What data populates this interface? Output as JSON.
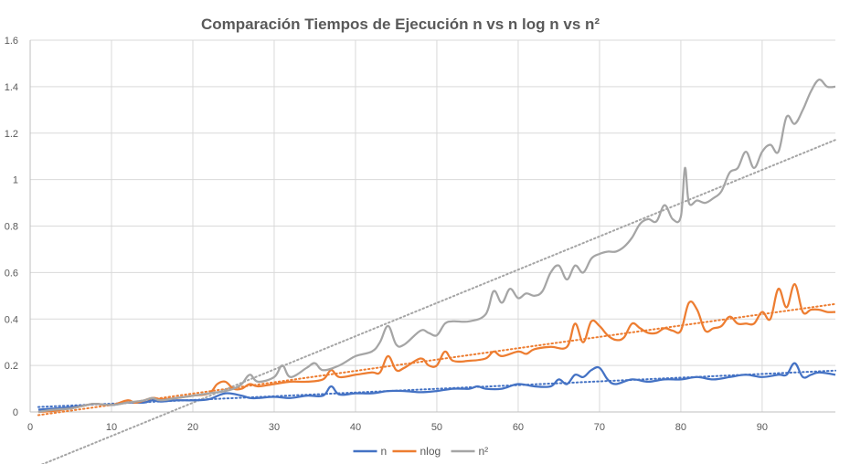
{
  "chart_data": {
    "type": "line",
    "title": "Comparación Tiempos de Ejecución n vs n log n vs n²",
    "xlabel": "",
    "ylabel": "",
    "xlim": [
      0,
      99
    ],
    "ylim": [
      0,
      1.6
    ],
    "x_ticks": [
      0,
      10,
      20,
      30,
      40,
      50,
      60,
      70,
      80,
      90
    ],
    "y_ticks": [
      0,
      0.2,
      0.4,
      0.6,
      0.8,
      1,
      1.2,
      1.4,
      1.6
    ],
    "y_tick_labels": [
      "0",
      "0.2",
      "0.4",
      "0.6",
      "0.8",
      "1",
      "1.2",
      "1.4",
      "1.6"
    ],
    "grid": true,
    "legend_position": "bottom",
    "trendlines": "linear, dotted, one per series",
    "series": [
      {
        "name": "n",
        "color": "#4472c4",
        "points": [
          [
            1,
            0.01
          ],
          [
            3,
            0.015
          ],
          [
            5,
            0.02
          ],
          [
            7,
            0.03
          ],
          [
            8,
            0.035
          ],
          [
            10,
            0.03
          ],
          [
            12,
            0.04
          ],
          [
            14,
            0.04
          ],
          [
            15,
            0.05
          ],
          [
            16,
            0.045
          ],
          [
            18,
            0.05
          ],
          [
            20,
            0.05
          ],
          [
            22,
            0.055
          ],
          [
            24,
            0.08
          ],
          [
            26,
            0.07
          ],
          [
            27,
            0.06
          ],
          [
            28,
            0.06
          ],
          [
            30,
            0.065
          ],
          [
            32,
            0.06
          ],
          [
            34,
            0.07
          ],
          [
            36,
            0.07
          ],
          [
            37,
            0.11
          ],
          [
            38,
            0.075
          ],
          [
            40,
            0.08
          ],
          [
            42,
            0.08
          ],
          [
            44,
            0.09
          ],
          [
            46,
            0.09
          ],
          [
            48,
            0.085
          ],
          [
            50,
            0.09
          ],
          [
            52,
            0.1
          ],
          [
            54,
            0.1
          ],
          [
            55,
            0.11
          ],
          [
            56,
            0.1
          ],
          [
            58,
            0.1
          ],
          [
            60,
            0.12
          ],
          [
            62,
            0.11
          ],
          [
            64,
            0.11
          ],
          [
            65,
            0.14
          ],
          [
            66,
            0.12
          ],
          [
            67,
            0.16
          ],
          [
            68,
            0.15
          ],
          [
            69,
            0.18
          ],
          [
            70,
            0.19
          ],
          [
            71,
            0.14
          ],
          [
            72,
            0.12
          ],
          [
            74,
            0.14
          ],
          [
            76,
            0.13
          ],
          [
            78,
            0.14
          ],
          [
            80,
            0.14
          ],
          [
            82,
            0.15
          ],
          [
            84,
            0.14
          ],
          [
            86,
            0.15
          ],
          [
            88,
            0.16
          ],
          [
            90,
            0.15
          ],
          [
            92,
            0.16
          ],
          [
            93,
            0.16
          ],
          [
            94,
            0.21
          ],
          [
            95,
            0.15
          ],
          [
            96,
            0.16
          ],
          [
            97,
            0.17
          ],
          [
            99,
            0.16
          ]
        ]
      },
      {
        "name": "nlog",
        "color": "#ed7d31",
        "points": [
          [
            1,
            0.0
          ],
          [
            3,
            0.005
          ],
          [
            5,
            0.015
          ],
          [
            7,
            0.03
          ],
          [
            8,
            0.035
          ],
          [
            10,
            0.03
          ],
          [
            12,
            0.05
          ],
          [
            13,
            0.04
          ],
          [
            15,
            0.06
          ],
          [
            16,
            0.055
          ],
          [
            18,
            0.06
          ],
          [
            20,
            0.07
          ],
          [
            22,
            0.08
          ],
          [
            23,
            0.12
          ],
          [
            24,
            0.13
          ],
          [
            25,
            0.1
          ],
          [
            26,
            0.1
          ],
          [
            27,
            0.12
          ],
          [
            28,
            0.11
          ],
          [
            30,
            0.12
          ],
          [
            32,
            0.13
          ],
          [
            34,
            0.13
          ],
          [
            36,
            0.14
          ],
          [
            37,
            0.18
          ],
          [
            38,
            0.15
          ],
          [
            40,
            0.16
          ],
          [
            42,
            0.17
          ],
          [
            43,
            0.17
          ],
          [
            44,
            0.24
          ],
          [
            45,
            0.18
          ],
          [
            46,
            0.19
          ],
          [
            48,
            0.23
          ],
          [
            49,
            0.2
          ],
          [
            50,
            0.2
          ],
          [
            51,
            0.26
          ],
          [
            52,
            0.22
          ],
          [
            54,
            0.22
          ],
          [
            56,
            0.23
          ],
          [
            57,
            0.26
          ],
          [
            58,
            0.24
          ],
          [
            60,
            0.26
          ],
          [
            61,
            0.25
          ],
          [
            62,
            0.27
          ],
          [
            64,
            0.28
          ],
          [
            66,
            0.28
          ],
          [
            67,
            0.38
          ],
          [
            68,
            0.3
          ],
          [
            69,
            0.39
          ],
          [
            70,
            0.37
          ],
          [
            71,
            0.33
          ],
          [
            72,
            0.31
          ],
          [
            73,
            0.32
          ],
          [
            74,
            0.38
          ],
          [
            75,
            0.36
          ],
          [
            76,
            0.34
          ],
          [
            77,
            0.34
          ],
          [
            78,
            0.36
          ],
          [
            79,
            0.35
          ],
          [
            80,
            0.35
          ],
          [
            81,
            0.47
          ],
          [
            82,
            0.44
          ],
          [
            83,
            0.35
          ],
          [
            84,
            0.36
          ],
          [
            85,
            0.37
          ],
          [
            86,
            0.41
          ],
          [
            87,
            0.38
          ],
          [
            88,
            0.38
          ],
          [
            89,
            0.38
          ],
          [
            90,
            0.43
          ],
          [
            91,
            0.4
          ],
          [
            92,
            0.53
          ],
          [
            93,
            0.45
          ],
          [
            94,
            0.55
          ],
          [
            95,
            0.43
          ],
          [
            96,
            0.44
          ],
          [
            97,
            0.44
          ],
          [
            98,
            0.43
          ],
          [
            99,
            0.43
          ]
        ]
      },
      {
        "name": "n²",
        "color": "#a5a5a5",
        "points": [
          [
            1,
            0.0
          ],
          [
            3,
            0.01
          ],
          [
            5,
            0.015
          ],
          [
            7,
            0.03
          ],
          [
            8,
            0.035
          ],
          [
            10,
            0.03
          ],
          [
            12,
            0.04
          ],
          [
            14,
            0.05
          ],
          [
            15,
            0.06
          ],
          [
            16,
            0.05
          ],
          [
            18,
            0.06
          ],
          [
            20,
            0.07
          ],
          [
            22,
            0.08
          ],
          [
            24,
            0.09
          ],
          [
            25,
            0.1
          ],
          [
            26,
            0.12
          ],
          [
            27,
            0.16
          ],
          [
            28,
            0.13
          ],
          [
            30,
            0.15
          ],
          [
            31,
            0.2
          ],
          [
            32,
            0.15
          ],
          [
            34,
            0.19
          ],
          [
            35,
            0.21
          ],
          [
            36,
            0.18
          ],
          [
            38,
            0.2
          ],
          [
            40,
            0.24
          ],
          [
            42,
            0.26
          ],
          [
            43,
            0.3
          ],
          [
            44,
            0.37
          ],
          [
            45,
            0.29
          ],
          [
            46,
            0.29
          ],
          [
            48,
            0.35
          ],
          [
            49,
            0.34
          ],
          [
            50,
            0.33
          ],
          [
            51,
            0.38
          ],
          [
            52,
            0.39
          ],
          [
            54,
            0.39
          ],
          [
            56,
            0.42
          ],
          [
            57,
            0.52
          ],
          [
            58,
            0.47
          ],
          [
            59,
            0.53
          ],
          [
            60,
            0.49
          ],
          [
            61,
            0.51
          ],
          [
            62,
            0.5
          ],
          [
            63,
            0.52
          ],
          [
            64,
            0.6
          ],
          [
            65,
            0.63
          ],
          [
            66,
            0.57
          ],
          [
            67,
            0.63
          ],
          [
            68,
            0.6
          ],
          [
            69,
            0.66
          ],
          [
            70,
            0.68
          ],
          [
            71,
            0.69
          ],
          [
            72,
            0.69
          ],
          [
            73,
            0.71
          ],
          [
            74,
            0.75
          ],
          [
            75,
            0.81
          ],
          [
            76,
            0.83
          ],
          [
            77,
            0.82
          ],
          [
            78,
            0.89
          ],
          [
            79,
            0.83
          ],
          [
            80,
            0.84
          ],
          [
            80.5,
            1.05
          ],
          [
            81,
            0.9
          ],
          [
            82,
            0.91
          ],
          [
            83,
            0.9
          ],
          [
            84,
            0.92
          ],
          [
            85,
            0.95
          ],
          [
            86,
            1.03
          ],
          [
            87,
            1.05
          ],
          [
            88,
            1.12
          ],
          [
            89,
            1.05
          ],
          [
            90,
            1.12
          ],
          [
            91,
            1.15
          ],
          [
            92,
            1.12
          ],
          [
            93,
            1.27
          ],
          [
            94,
            1.24
          ],
          [
            95,
            1.3
          ],
          [
            96,
            1.38
          ],
          [
            97,
            1.43
          ],
          [
            98,
            1.4
          ],
          [
            99,
            1.4
          ]
        ]
      }
    ]
  }
}
